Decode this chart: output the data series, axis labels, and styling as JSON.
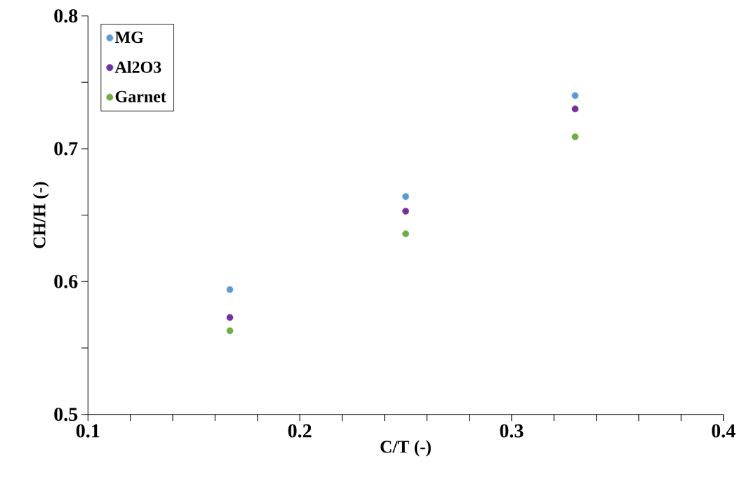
{
  "chart_data": {
    "type": "scatter",
    "xlabel": "C/T (-)",
    "ylabel": "CH/H (-)",
    "x": [
      0.167,
      0.25,
      0.33
    ],
    "series": [
      {
        "name": "MG",
        "color": "#5b9bd5",
        "values": [
          0.594,
          0.664,
          0.74
        ]
      },
      {
        "name": "Al2O3",
        "color": "#7030a0",
        "values": [
          0.573,
          0.653,
          0.73
        ]
      },
      {
        "name": "Garnet",
        "color": "#70ad47",
        "values": [
          0.563,
          0.636,
          0.709
        ]
      }
    ],
    "xlim": [
      0.1,
      0.4
    ],
    "ylim": [
      0.5,
      0.8
    ],
    "xticks": [
      0.1,
      {
        "value": 0.12,
        "label": null
      },
      {
        "value": 0.14,
        "label": null
      },
      {
        "value": 0.16,
        "label": null
      },
      {
        "value": 0.18,
        "label": null
      },
      0.2,
      {
        "value": 0.22,
        "label": null
      },
      {
        "value": 0.24,
        "label": null
      },
      {
        "value": 0.26,
        "label": null
      },
      {
        "value": 0.28,
        "label": null
      },
      0.3,
      {
        "value": 0.32,
        "label": null
      },
      {
        "value": 0.34,
        "label": null
      },
      {
        "value": 0.36,
        "label": null
      },
      {
        "value": 0.38,
        "label": null
      },
      0.4
    ],
    "yticks": [
      0.5,
      {
        "value": 0.55,
        "label": null
      },
      0.6,
      {
        "value": 0.65,
        "label": null
      },
      0.7,
      {
        "value": 0.75,
        "label": null
      },
      0.8
    ],
    "grid": false,
    "legend": "top left",
    "marker": "circle"
  }
}
